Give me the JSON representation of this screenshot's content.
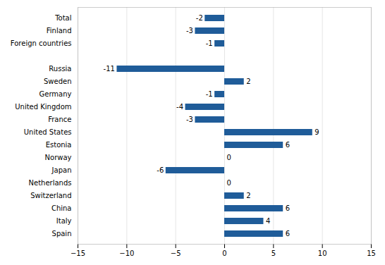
{
  "chart_data": {
    "type": "bar",
    "orientation": "horizontal",
    "categories": [
      "Total",
      "Finland",
      "Foreign countries",
      null,
      "Russia",
      "Sweden",
      "Germany",
      "United Kingdom",
      "France",
      "United States",
      "Estonia",
      "Norway",
      "Japan",
      "Netherlands",
      "Switzerland",
      "China",
      "Italy",
      "Spain"
    ],
    "values": [
      -2,
      -3,
      -1,
      null,
      -11,
      2,
      -1,
      -4,
      -3,
      9,
      6,
      0,
      -6,
      0,
      2,
      6,
      4,
      6
    ],
    "color": "#1F5C99",
    "xlim": [
      -15,
      15
    ],
    "xticks": [
      -15,
      -10,
      -5,
      0,
      5,
      10,
      15
    ],
    "grid": true,
    "data_labels": true
  }
}
